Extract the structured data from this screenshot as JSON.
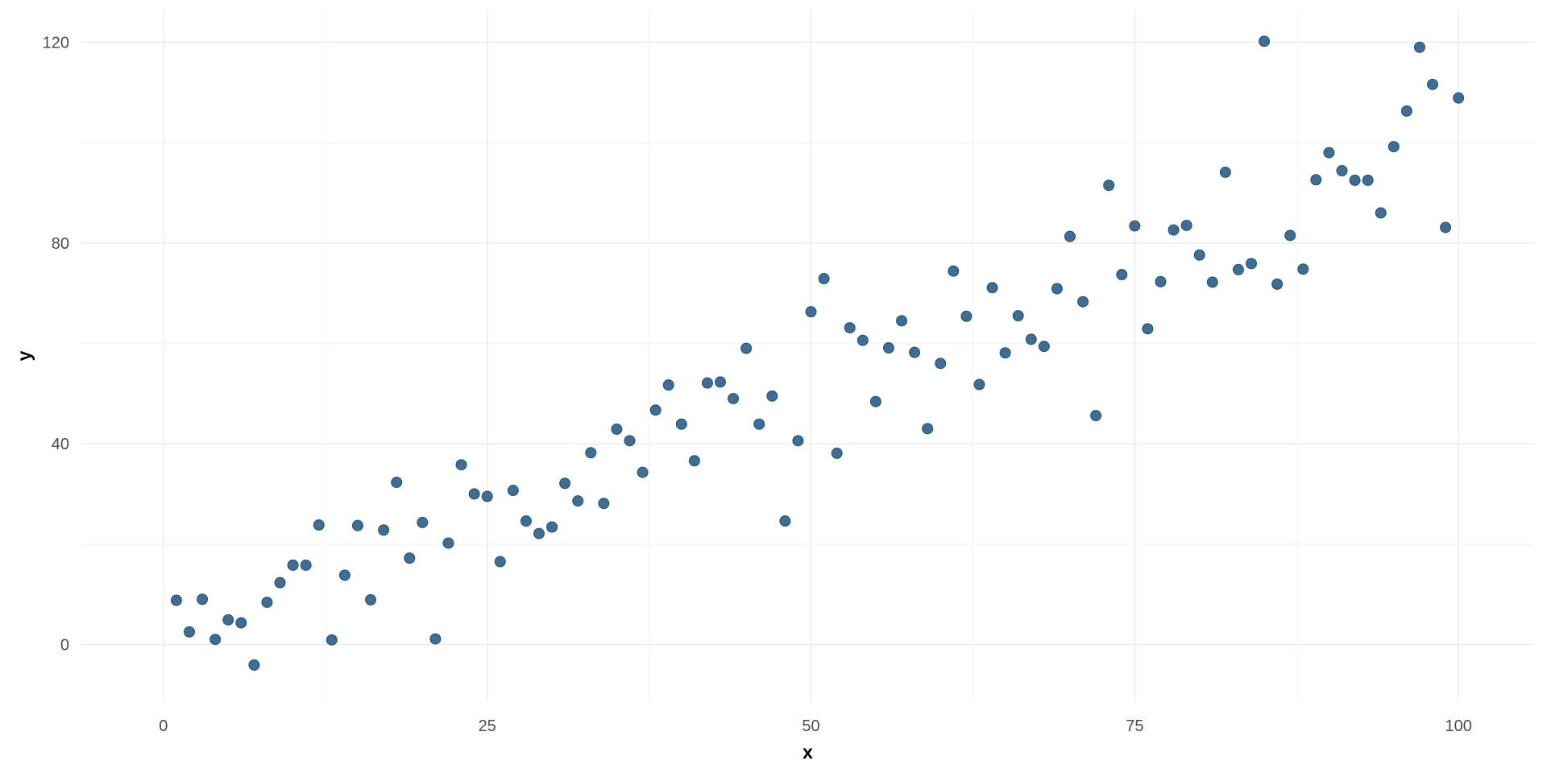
{
  "chart_data": {
    "type": "scatter",
    "title": "",
    "xlabel": "x",
    "ylabel": "y",
    "xlim": [
      -6.4,
      105.9
    ],
    "ylim": [
      -11.5,
      126.5
    ],
    "x_ticks": [
      0,
      25,
      50,
      75,
      100
    ],
    "y_ticks": [
      0,
      40,
      80,
      120
    ],
    "x_tick_labels": [
      "0",
      "25",
      "50",
      "75",
      "100"
    ],
    "y_tick_labels": [
      "0",
      "40",
      "80",
      "120"
    ],
    "grid": true,
    "legend": "none",
    "colors": {
      "point_fill": "#3d6e96",
      "point_stroke": "#2c5575",
      "grid_major": "#ebebeb",
      "grid_minor": "#f3f3f3",
      "background": "#ffffff"
    },
    "series": [
      {
        "x": [
          1,
          2,
          3,
          4,
          5,
          6,
          7,
          8,
          9,
          10,
          11,
          12,
          13,
          14,
          15,
          16,
          17,
          18,
          19,
          20,
          21,
          22,
          23,
          24,
          25,
          26,
          27,
          28,
          29,
          30,
          31,
          32,
          33,
          34,
          35,
          36,
          37,
          38,
          39,
          40,
          41,
          42,
          43,
          44,
          45,
          46,
          47,
          48,
          49,
          50,
          51,
          52,
          53,
          54,
          55,
          56,
          57,
          58,
          59,
          60,
          61,
          62,
          63,
          64,
          65,
          66,
          67,
          68,
          69,
          70,
          71,
          72,
          73,
          74,
          75,
          76,
          77,
          78,
          79,
          80,
          81,
          82,
          83,
          84,
          85,
          86,
          87,
          88,
          89,
          90,
          91,
          92,
          93,
          94,
          95,
          96,
          97,
          98,
          99,
          100
        ],
        "y": [
          8.8,
          2.5,
          9.0,
          1.0,
          4.9,
          4.3,
          -4.1,
          8.4,
          12.3,
          15.8,
          15.8,
          23.8,
          0.9,
          13.8,
          23.7,
          8.9,
          22.8,
          32.3,
          17.2,
          24.3,
          1.1,
          20.2,
          35.8,
          30.0,
          29.5,
          16.5,
          30.7,
          24.6,
          22.1,
          23.4,
          32.1,
          28.6,
          38.2,
          28.1,
          42.9,
          40.6,
          34.3,
          46.7,
          51.7,
          43.9,
          36.6,
          52.1,
          52.3,
          49.0,
          59.0,
          43.9,
          49.5,
          24.6,
          40.6,
          66.3,
          72.9,
          38.1,
          63.1,
          60.6,
          48.4,
          59.1,
          64.5,
          58.2,
          43.0,
          56.0,
          74.4,
          65.4,
          51.8,
          71.1,
          58.1,
          65.5,
          60.8,
          59.4,
          70.9,
          81.3,
          68.3,
          45.6,
          91.5,
          73.7,
          83.4,
          62.9,
          72.3,
          82.6,
          83.5,
          77.6,
          72.2,
          94.1,
          74.7,
          75.9,
          120.2,
          71.8,
          81.5,
          74.8,
          92.6,
          98.0,
          94.4,
          92.5,
          92.5,
          86.0,
          99.2,
          106.3,
          119.0,
          111.6,
          83.1,
          108.9
        ]
      }
    ]
  }
}
